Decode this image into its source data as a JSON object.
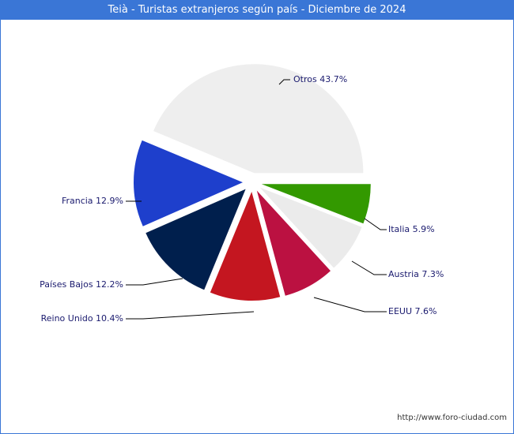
{
  "chart_data": {
    "type": "pie",
    "title": "Teià - Turistas extranjeros según país - Diciembre de 2024",
    "slices": [
      {
        "label": "Italia",
        "value": 5.9,
        "display": "Italia 5.9%",
        "color": "#339900"
      },
      {
        "label": "Austria",
        "value": 7.3,
        "display": "Austria 7.3%",
        "color": "#ebebeb"
      },
      {
        "label": "EEUU",
        "value": 7.6,
        "display": "EEUU 7.6%",
        "color": "#bb1141"
      },
      {
        "label": "Reino Unido",
        "value": 10.4,
        "display": "Reino Unido 10.4%",
        "color": "#c41620"
      },
      {
        "label": "Países Bajos",
        "value": 12.2,
        "display": "Países Bajos 12.2%",
        "color": "#001f4d"
      },
      {
        "label": "Francia",
        "value": 12.9,
        "display": "Francia 12.9%",
        "color": "#1e3fcc"
      },
      {
        "label": "Otros",
        "value": 43.7,
        "display": "Otros 43.7%",
        "color": "#eeeeee"
      }
    ],
    "legend": "none"
  },
  "footer": {
    "url": "http://www.foro-ciudad.com"
  }
}
